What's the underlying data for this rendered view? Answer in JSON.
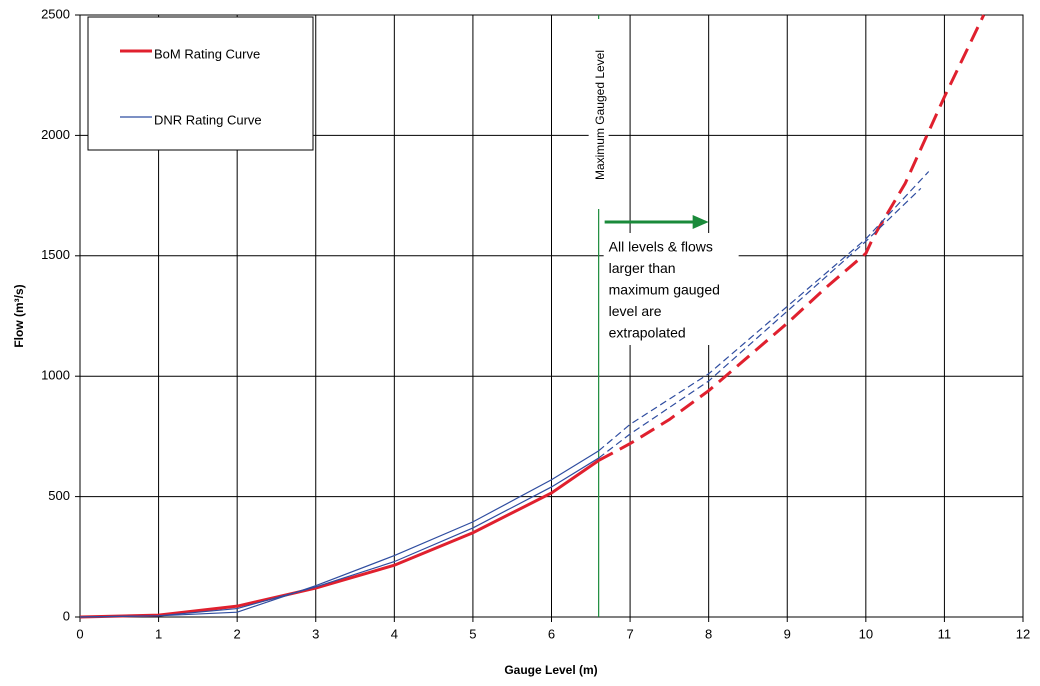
{
  "chart_data": {
    "type": "line",
    "x_label": "Gauge Level (m)",
    "y_label": "Flow (m³/s)",
    "xlim": [
      0,
      12
    ],
    "xticks": [
      0,
      1,
      2,
      3,
      4,
      5,
      6,
      7,
      8,
      9,
      10,
      11,
      12
    ],
    "ylim": [
      0,
      2500
    ],
    "yticks": [
      0,
      500,
      1000,
      1500,
      2000,
      2500
    ],
    "grid": true,
    "max_gauged_level": 6.6,
    "max_gauged_label": "Maximum Gauged Level",
    "annotation": [
      "All levels & flows",
      "larger than",
      "maximum gauged",
      "level are",
      "extrapolated"
    ],
    "series": [
      {
        "name": "BoM Rating Curve",
        "color": "#e0202e",
        "width": 3,
        "x": [
          0,
          1,
          2,
          3,
          4,
          5,
          6,
          6.6,
          7,
          7.5,
          8,
          8.5,
          9,
          9.5,
          10,
          10.1,
          10.5,
          11,
          11.5
        ],
        "values": [
          0,
          8,
          45,
          120,
          215,
          350,
          515,
          650,
          720,
          820,
          940,
          1080,
          1220,
          1370,
          1510,
          1580,
          1800,
          2160,
          2500
        ]
      },
      {
        "name": "DNR Rating Curve",
        "color": "#2f4da0",
        "width": 1.2,
        "x": [
          0,
          1,
          2,
          3,
          4,
          5,
          6,
          6.6,
          7,
          8,
          9,
          10,
          10.8
        ],
        "values": [
          0,
          5,
          20,
          130,
          255,
          395,
          570,
          690,
          800,
          1010,
          1290,
          1570,
          1850
        ]
      },
      {
        "color": "#2f4da0",
        "width": 1.2,
        "x": [
          0,
          1,
          2,
          3,
          4,
          5,
          6,
          6.6,
          7,
          8,
          9,
          10,
          10.7
        ],
        "values": [
          0,
          5,
          35,
          125,
          230,
          370,
          540,
          660,
          760,
          980,
          1270,
          1560,
          1780
        ]
      }
    ]
  }
}
